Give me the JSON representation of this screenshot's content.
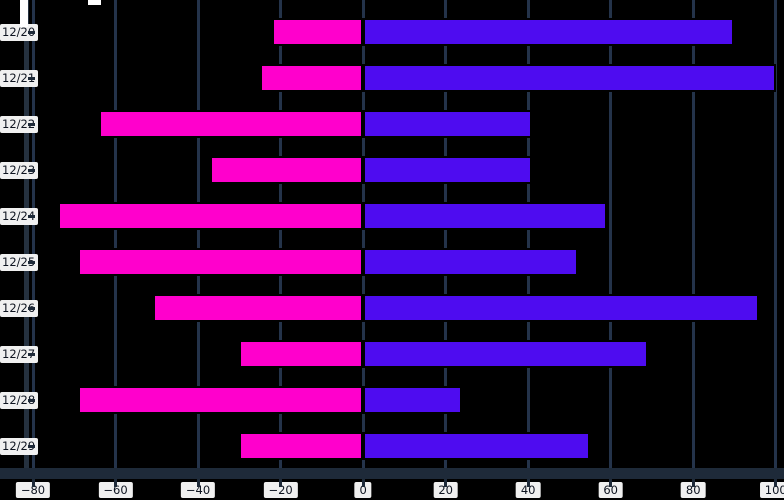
{
  "chart_data": {
    "type": "bar",
    "orientation": "horizontal",
    "categories": [
      "12/20",
      "12/21",
      "12/22",
      "12/23",
      "12/24",
      "12/25",
      "12/26",
      "12/27",
      "12/28",
      "12/29"
    ],
    "series": [
      {
        "key": "pink-left-series",
        "color": "#ff00cc",
        "values": [
          -22,
          -25,
          -64,
          -37,
          -74,
          -69,
          -51,
          -30,
          -69,
          -30
        ]
      },
      {
        "key": "blue-right-series",
        "color": "#4e0cf0",
        "values": [
          90,
          100,
          41,
          41,
          59,
          52,
          96,
          69,
          24,
          55
        ]
      }
    ],
    "x_ticks": [
      -80,
      -60,
      -40,
      -20,
      0,
      20,
      40,
      60,
      80,
      100
    ],
    "x_tick_labels": [
      "−80",
      "−60",
      "−40",
      "−20",
      "0",
      "20",
      "40",
      "60",
      "80",
      "100"
    ],
    "xlim": [
      -88,
      102
    ],
    "grid": true,
    "legend": false,
    "background_color": "#000000",
    "grid_color": "#24334a",
    "axis_color": "#1e2a39",
    "bar_border_color": "#000000",
    "tick_chip_background": "#f0f0f0",
    "tick_text_color": "#0e1420"
  }
}
